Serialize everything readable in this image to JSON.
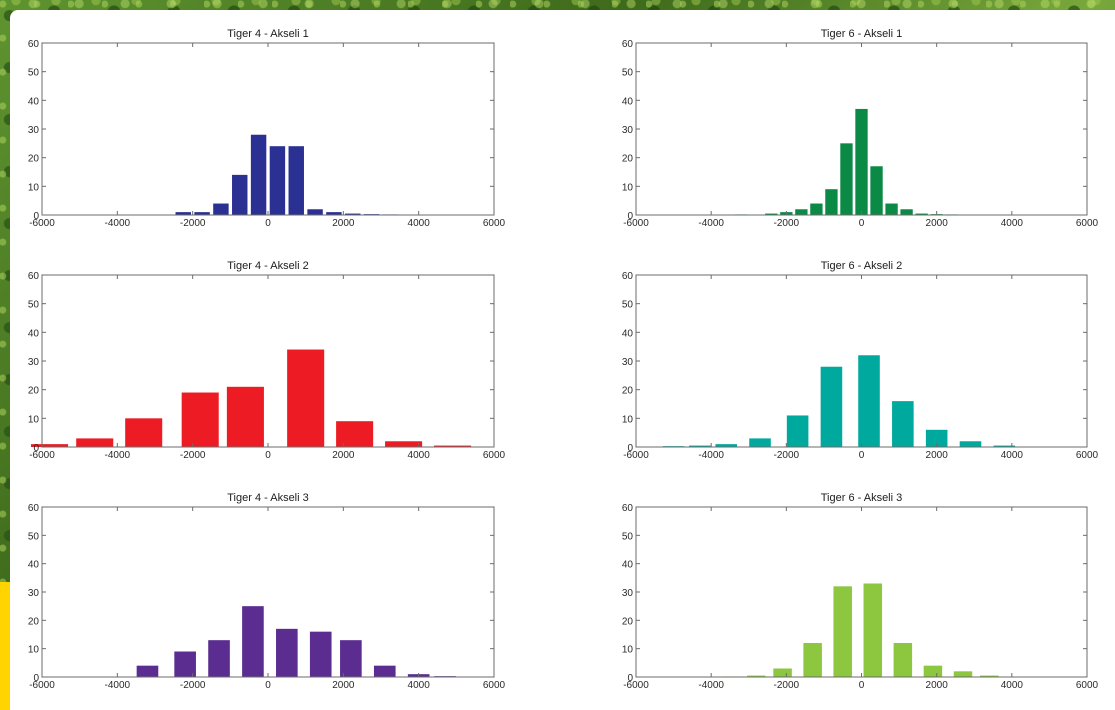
{
  "chart_data": [
    {
      "type": "bar",
      "title": "Tiger 4 - Akseli 1",
      "color": "#2b3192",
      "x": [
        -2250,
        -1750,
        -1250,
        -750,
        -250,
        250,
        750,
        1250,
        1750,
        2250,
        2750,
        3250
      ],
      "values": [
        1,
        1,
        4,
        14,
        28,
        24,
        24,
        2,
        1,
        0.5,
        0.3,
        0.2
      ],
      "xlim": [
        -6000,
        6000
      ],
      "ylim": [
        0,
        60
      ],
      "xticks": [
        "-6000",
        "-4000",
        "-2000",
        "0",
        "2000",
        "4000",
        "6000"
      ],
      "yticks": [
        "0",
        "10",
        "20",
        "30",
        "40",
        "50",
        "60"
      ]
    },
    {
      "type": "bar",
      "title": "Tiger 6 - Akseli 1",
      "color": "#0a8a45",
      "x": [
        -3200,
        -2400,
        -2000,
        -1600,
        -1200,
        -800,
        -400,
        0,
        400,
        800,
        1200,
        1600,
        2000,
        2400,
        2800
      ],
      "values": [
        0.2,
        0.5,
        1,
        2,
        4,
        9,
        25,
        37,
        17,
        4,
        2,
        0.5,
        0.3,
        0.2,
        0.1
      ],
      "xlim": [
        -6000,
        6000
      ],
      "ylim": [
        0,
        60
      ],
      "xticks": [
        "-6000",
        "-4000",
        "-2000",
        "0",
        "2000",
        "4000",
        "6000"
      ],
      "yticks": [
        "0",
        "10",
        "20",
        "30",
        "40",
        "50",
        "60"
      ]
    },
    {
      "type": "bar",
      "title": "Tiger 4 - Akseli 2",
      "color": "#ed1c24",
      "x": [
        -5800,
        -4600,
        -3300,
        -1800,
        -600,
        1000,
        2300,
        3600,
        4900
      ],
      "values": [
        1,
        3,
        10,
        19,
        21,
        34,
        9,
        2,
        0.5
      ],
      "xlim": [
        -6000,
        6000
      ],
      "ylim": [
        0,
        60
      ],
      "xticks": [
        "-6000",
        "-4000",
        "-2000",
        "0",
        "2000",
        "4000",
        "6000"
      ],
      "yticks": [
        "0",
        "10",
        "20",
        "30",
        "40",
        "50",
        "60"
      ]
    },
    {
      "type": "bar",
      "title": "Tiger 6 - Akseli 2",
      "color": "#00a99d",
      "x": [
        -5000,
        -4300,
        -3600,
        -2700,
        -1700,
        -800,
        200,
        1100,
        2000,
        2900,
        3800
      ],
      "values": [
        0.3,
        0.5,
        1,
        3,
        11,
        28,
        32,
        16,
        6,
        2,
        0.5
      ],
      "xlim": [
        -6000,
        6000
      ],
      "ylim": [
        0,
        60
      ],
      "xticks": [
        "-6000",
        "-4000",
        "-2000",
        "0",
        "2000",
        "4000",
        "6000"
      ],
      "yticks": [
        "0",
        "10",
        "20",
        "30",
        "40",
        "50",
        "60"
      ]
    },
    {
      "type": "bar",
      "title": "Tiger 4 - Akseli 3",
      "color": "#5b2d90",
      "x": [
        -3200,
        -2200,
        -1300,
        -400,
        500,
        1400,
        2200,
        3100,
        4000,
        4700
      ],
      "values": [
        4,
        9,
        13,
        25,
        17,
        16,
        13,
        4,
        1,
        0.3
      ],
      "xlim": [
        -6000,
        6000
      ],
      "ylim": [
        0,
        60
      ],
      "xticks": [
        "-6000",
        "-4000",
        "-2000",
        "0",
        "2000",
        "4000",
        "6000"
      ],
      "yticks": [
        "0",
        "10",
        "20",
        "30",
        "40",
        "50",
        "60"
      ]
    },
    {
      "type": "bar",
      "title": "Tiger 6 - Akseli 3",
      "color": "#8dc63f",
      "x": [
        -3400,
        -2800,
        -2100,
        -1300,
        -500,
        300,
        1100,
        1900,
        2700,
        3400
      ],
      "values": [
        0.2,
        0.5,
        3,
        12,
        32,
        33,
        12,
        4,
        2,
        0.5
      ],
      "xlim": [
        -6000,
        6000
      ],
      "ylim": [
        0,
        60
      ],
      "xticks": [
        "-6000",
        "-4000",
        "-2000",
        "0",
        "2000",
        "4000",
        "6000"
      ],
      "yticks": [
        "0",
        "10",
        "20",
        "30",
        "40",
        "50",
        "60"
      ]
    }
  ]
}
